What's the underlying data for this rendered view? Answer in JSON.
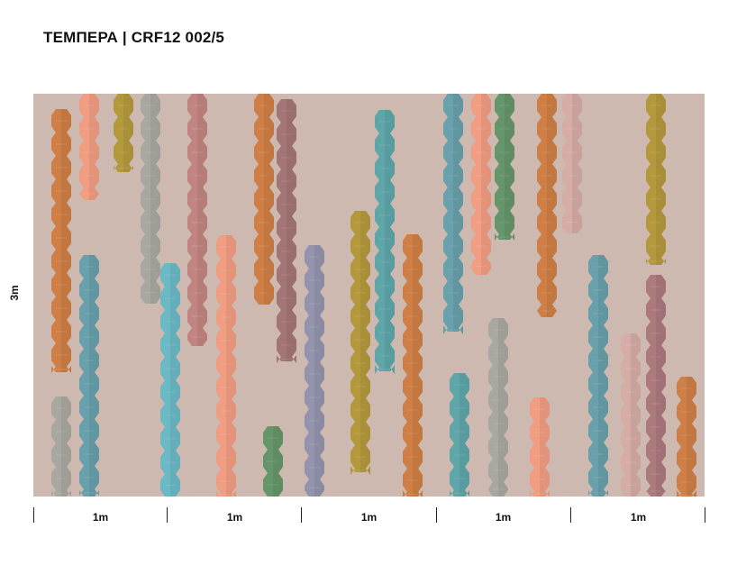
{
  "title": "ТЕМПЕРА | CRF12 002/5",
  "height_label": "3m",
  "width_segments": [
    "1m",
    "1m",
    "1m",
    "1m",
    "1m"
  ],
  "background_color": "#cdb9b0",
  "pattern_name": "hexagon-columns",
  "palette": {
    "orange": "#cf7a3c",
    "salmon": "#f49a7e",
    "mustard": "#b29532",
    "grey": "#a5a59e",
    "rose": "#c17f7c",
    "teal": "#5f9dab",
    "turquoise": "#63b9c7",
    "burgundy": "#a06f6f",
    "lavender": "#8e8fae",
    "aqua": "#56a4a8",
    "green": "#5c9164",
    "pink": "#d6aaa5",
    "mauve": "#a97378"
  }
}
